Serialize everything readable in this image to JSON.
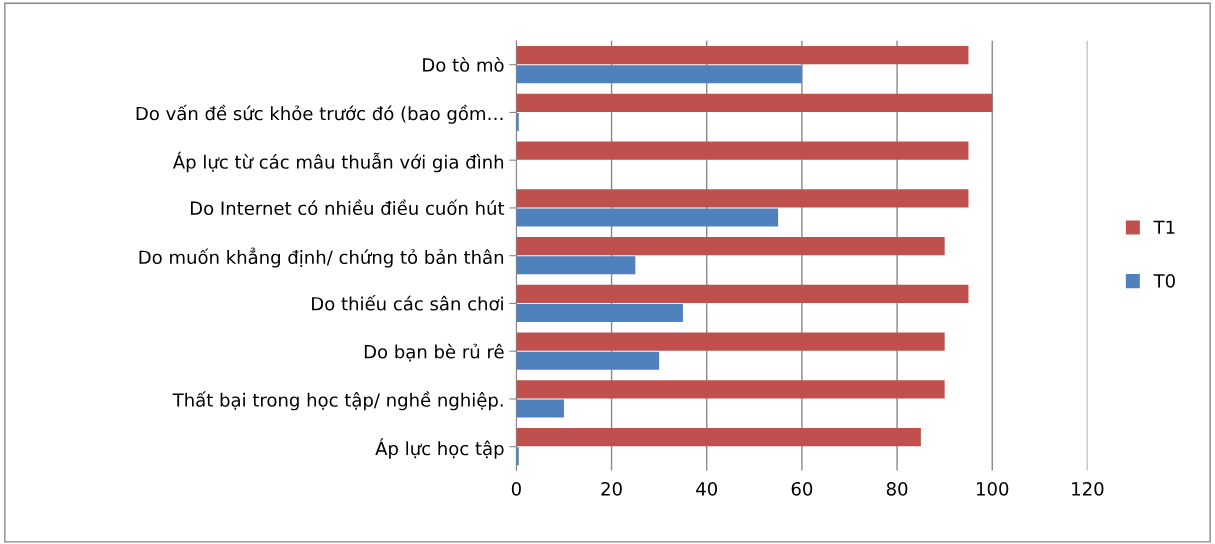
{
  "chart_data": {
    "type": "bar",
    "orientation": "horizontal",
    "categories": [
      "Do tò mò",
      "Do vấn đề sức khỏe trước đó (bao gồm…",
      "Áp lực từ các mâu thuẫn với gia đình",
      "Do Internet có nhiều điều cuốn hút",
      "Do muốn khẳng định/ chứng tỏ bản thân",
      "Do thiếu các sân chơi",
      "Do bạn bè rủ rê",
      "Thất bại trong học tập/ nghề nghiệp.",
      "Áp lực học tập"
    ],
    "series": [
      {
        "name": "T1",
        "color": "#c0504d",
        "values": [
          95,
          100,
          95,
          95,
          90,
          95,
          90,
          90,
          85
        ]
      },
      {
        "name": "T0",
        "color": "#4f81bd",
        "values": [
          60,
          0.5,
          0,
          55,
          25,
          35,
          30,
          10,
          0.5
        ]
      }
    ],
    "xlim": [
      0,
      120
    ],
    "xticks": [
      0,
      20,
      40,
      60,
      80,
      100,
      120
    ],
    "grid": "x",
    "legend": "right"
  }
}
